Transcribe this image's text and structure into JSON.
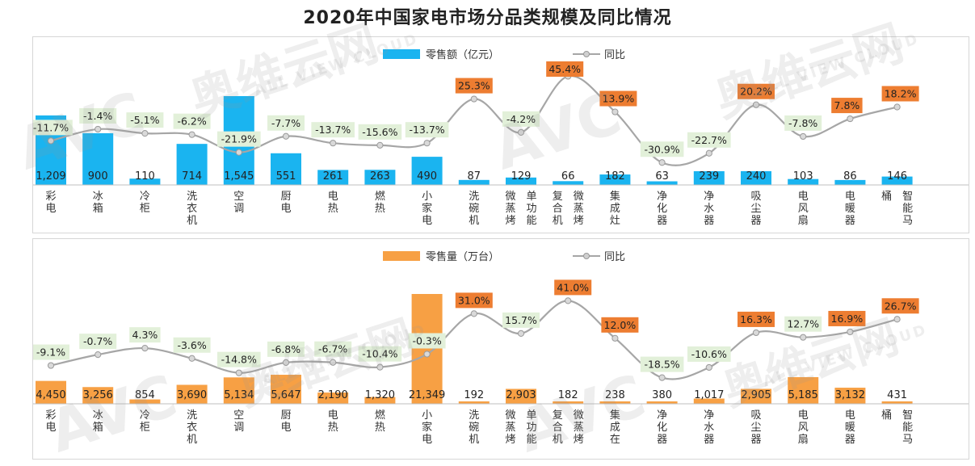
{
  "title": "2020年中国家电市场分品类规模及同比情况",
  "watermark": {
    "logo": "AVC",
    "cn": "奥维云网",
    "en": "ALL VIEW CLOUD"
  },
  "colors": {
    "bar_top": "#1ab4f0",
    "bar_bottom": "#f7a044",
    "yoy_line": "#a6a6a6",
    "label_positive": "#ed7d31",
    "label_negative": "#e2f0d9"
  },
  "chart_data": [
    {
      "type": "bar",
      "categories": [
        "彩电",
        "冰箱",
        "冷柜",
        "洗衣机",
        "空调",
        "厨电",
        "电热",
        "燃热",
        "小家电",
        "洗碗机",
        "单功能微蒸烤",
        "复合微蒸烤",
        "集成灶",
        "净化器",
        "净水器",
        "吸尘器",
        "电风扇",
        "电暖器",
        "智能马桶"
      ],
      "category_labels": [
        [
          "彩电"
        ],
        [
          "冰箱"
        ],
        [
          "冷柜"
        ],
        [
          "洗衣机"
        ],
        [
          "空调"
        ],
        [
          "厨电"
        ],
        [
          "电热"
        ],
        [
          "燃热"
        ],
        [
          "小家电"
        ],
        [
          "洗碗机"
        ],
        [
          "微蒸烤",
          "单功能"
        ],
        [
          "复合机",
          "微蒸烤"
        ],
        [
          "集成灶"
        ],
        [
          "净化器"
        ],
        [
          "净水器"
        ],
        [
          "吸尘器"
        ],
        [
          "电风扇"
        ],
        [
          "电暖器"
        ],
        [
          "桶",
          "智能马"
        ]
      ],
      "legend_position": "top",
      "series": [
        {
          "name": "零售额（亿元）",
          "kind": "bar",
          "values": [
            1209,
            900,
            110,
            714,
            1545,
            551,
            261,
            263,
            490,
            87,
            129,
            66,
            182,
            63,
            239,
            240,
            103,
            86,
            146
          ],
          "value_labels": [
            "1,209",
            "900",
            "110",
            "714",
            "1,545",
            "551",
            "261",
            "263",
            "490",
            "87",
            "129",
            "66",
            "182",
            "63",
            "239",
            "240",
            "103",
            "86",
            "146"
          ]
        },
        {
          "name": "同比",
          "kind": "line",
          "values": [
            -11.7,
            -1.4,
            -5.1,
            -6.2,
            -21.9,
            -7.7,
            -13.7,
            -15.6,
            -13.7,
            25.3,
            -4.2,
            45.4,
            13.9,
            -30.9,
            -22.7,
            20.2,
            -7.8,
            7.8,
            18.2
          ],
          "value_labels": [
            "-11.7%",
            "-1.4%",
            "-5.1%",
            "-6.2%",
            "-21.9%",
            "-7.7%",
            "-13.7%",
            "-15.6%",
            "-13.7%",
            "25.3%",
            "-4.2%",
            "45.4%",
            "13.9%",
            "-30.9%",
            "-22.7%",
            "20.2%",
            "-7.8%",
            "7.8%",
            "18.2%"
          ]
        }
      ]
    },
    {
      "type": "bar",
      "categories": [
        "彩电",
        "冰箱",
        "冷柜",
        "洗衣机",
        "空调",
        "厨电",
        "电热",
        "燃热",
        "小家电",
        "洗碗机",
        "单功能微蒸烤",
        "复合微蒸烤",
        "集成在",
        "净化器",
        "净水器",
        "吸尘器",
        "电风扇",
        "电暖器",
        "智能马桶"
      ],
      "category_labels": [
        [
          "彩电"
        ],
        [
          "冰箱"
        ],
        [
          "冷柜"
        ],
        [
          "洗衣机"
        ],
        [
          "空调"
        ],
        [
          "厨电"
        ],
        [
          "电热"
        ],
        [
          "燃热"
        ],
        [
          "小家电"
        ],
        [
          "洗碗机"
        ],
        [
          "微蒸烤",
          "单功能"
        ],
        [
          "复合机",
          "微蒸烤"
        ],
        [
          "集成在"
        ],
        [
          "净化器"
        ],
        [
          "净水器"
        ],
        [
          "吸尘器"
        ],
        [
          "电风扇"
        ],
        [
          "电暖器"
        ],
        [
          "桶",
          "智能马"
        ]
      ],
      "legend_position": "top",
      "series": [
        {
          "name": "零售量（万台）",
          "kind": "bar",
          "values": [
            4450,
            3256,
            854,
            3690,
            5134,
            5647,
            2190,
            1320,
            21349,
            192,
            2903,
            182,
            238,
            380,
            1017,
            2905,
            5185,
            3132,
            431
          ],
          "value_labels": [
            "4,450",
            "3,256",
            "854",
            "3,690",
            "5,134",
            "5,647",
            "2,190",
            "1,320",
            "21,349",
            "192",
            "2,903",
            "182",
            "238",
            "380",
            "1,017",
            "2,905",
            "5,185",
            "3,132",
            "431"
          ]
        },
        {
          "name": "同比",
          "kind": "line",
          "values": [
            -9.1,
            -0.7,
            4.3,
            -3.6,
            -14.8,
            -6.8,
            -6.7,
            -10.4,
            -0.3,
            31.0,
            15.7,
            41.0,
            12.0,
            -18.5,
            -10.6,
            16.3,
            12.7,
            16.9,
            26.7
          ],
          "value_labels": [
            "-9.1%",
            "-0.7%",
            "4.3%",
            "-3.6%",
            "-14.8%",
            "-6.8%",
            "-6.7%",
            "-10.4%",
            "-0.3%",
            "31.0%",
            "15.7%",
            "41.0%",
            "12.0%",
            "-18.5%",
            "-10.6%",
            "16.3%",
            "12.7%",
            "16.9%",
            "26.7%"
          ]
        }
      ]
    }
  ]
}
